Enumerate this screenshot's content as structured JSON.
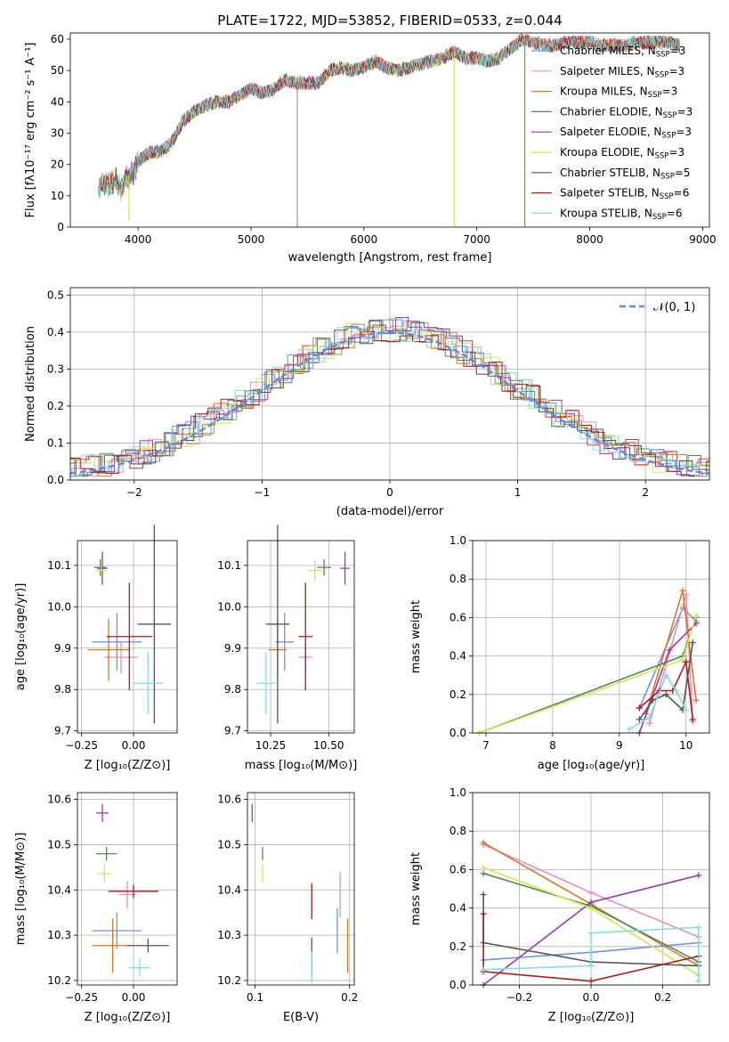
{
  "figure": {
    "title": "PLATE=1722, MJD=53852, FIBERID=0533, z=0.044"
  },
  "models": [
    {
      "label": "Chabrier MILES, N$_{SSP}$=3",
      "label_text": "Chabrier MILES, N",
      "nssp": "=3",
      "color": "#6f95e2"
    },
    {
      "label": "Salpeter MILES, N$_{SSP}$=3",
      "label_text": "Salpeter MILES, N",
      "nssp": "=3",
      "color": "#e98cbf"
    },
    {
      "label": "Kroupa MILES, N$_{SSP}$=3",
      "label_text": "Kroupa MILES, N",
      "nssp": "=3",
      "color": "#d9761f"
    },
    {
      "label": "Chabrier ELODIE, N$_{SSP}$=3",
      "label_text": "Chabrier ELODIE, N",
      "nssp": "=3",
      "color": "#4e8a5e"
    },
    {
      "label": "Salpeter ELODIE, N$_{SSP}$=3",
      "label_text": "Salpeter ELODIE, N",
      "nssp": "=3",
      "color": "#9a36b8"
    },
    {
      "label": "Kroupa ELODIE, N$_{SSP}$=3",
      "label_text": "Kroupa ELODIE, N",
      "nssp": "=3",
      "color": "#cfe84c"
    },
    {
      "label": "Chabrier STELIB, N$_{SSP}$=5",
      "label_text": "Chabrier STELIB, N",
      "nssp": "=5",
      "color": "#555555"
    },
    {
      "label": "Salpeter STELIB, N$_{SSP}$=6",
      "label_text": "Salpeter STELIB, N",
      "nssp": "=6",
      "color": "#b01a1a"
    },
    {
      "label": "Kroupa STELIB, N$_{SSP}$=6",
      "label_text": "Kroupa STELIB, N",
      "nssp": "=6",
      "color": "#82dde0"
    }
  ],
  "chart_data": [
    {
      "id": "spectrum",
      "type": "line",
      "xlabel": "wavelength [Angstrom, rest frame]",
      "ylabel": "Flux [fλ10⁻¹⁷ erg cm⁻² s⁻¹ A⁻¹]",
      "xlim": [
        3400,
        9060
      ],
      "ylim": [
        0,
        62
      ],
      "xticks": [
        4000,
        5000,
        6000,
        7000,
        8000,
        9000
      ],
      "yticks": [
        0,
        10,
        20,
        30,
        40,
        50,
        60
      ],
      "spectrum_anchor_points": {
        "wavelength": [
          3650,
          3700,
          3750,
          3800,
          3850,
          3900,
          3950,
          4000,
          4100,
          4200,
          4300,
          4400,
          4500,
          4600,
          4700,
          4800,
          4900,
          5000,
          5100,
          5200,
          5300,
          5400,
          5500,
          5600,
          5700,
          5800,
          5900,
          6000,
          6100,
          6200,
          6300,
          6400,
          6500,
          6600,
          6700,
          6800,
          6900,
          7000,
          7100,
          7200,
          7300,
          7400,
          7500,
          7600,
          7700,
          7800,
          7900,
          8000,
          8100,
          8200,
          8300,
          8400,
          8500,
          8600,
          8700,
          8800
        ],
        "flux": [
          12,
          14,
          13,
          16,
          12,
          16,
          17,
          21,
          24,
          24,
          27,
          34,
          37,
          39,
          40,
          40,
          42,
          44,
          43,
          44,
          47,
          46,
          46,
          46,
          50,
          51,
          50,
          51,
          53,
          51,
          50,
          51,
          52,
          53,
          54,
          56,
          54,
          54,
          53,
          54,
          57,
          60,
          59,
          58,
          58,
          59,
          59,
          59,
          58,
          58,
          58,
          59,
          59,
          59,
          59,
          58
        ]
      },
      "sharp_dips": [
        {
          "wavelength": 3920,
          "flux": 2
        },
        {
          "wavelength": 5410,
          "flux": 0
        },
        {
          "wavelength": 6800,
          "flux": 0
        },
        {
          "wavelength": 7425,
          "flux": 0
        }
      ],
      "legend": "top-right"
    },
    {
      "id": "residuals",
      "type": "line",
      "xlabel": "(data-model)/error",
      "ylabel": "Normed distribution",
      "xlim": [
        -2.5,
        2.5
      ],
      "ylim": [
        0,
        0.52
      ],
      "xticks": [
        -2,
        -1,
        0,
        1,
        2
      ],
      "yticks": [
        0.0,
        0.1,
        0.2,
        0.3,
        0.4,
        0.5
      ],
      "grid": true,
      "histogram_bin_width": 0.1,
      "reference_curve": {
        "name": "𝒩(0, 1)",
        "mean": 0,
        "sigma": 1,
        "style": "dashed",
        "color": "#5b8ee6"
      },
      "legend": "top-right"
    },
    {
      "id": "z-age",
      "type": "scatter",
      "xlabel": "Z [log₁₀(Z/Z⊙)]",
      "ylabel": "age  [log₁₀(age/yr)]",
      "xlim": [
        -0.27,
        0.21
      ],
      "ylim": [
        9.695,
        10.16
      ],
      "xticks": [
        -0.25,
        0.0
      ],
      "xticklabels": [
        "−0.25",
        "0.00"
      ],
      "yticks": [
        9.7,
        9.8,
        9.9,
        10.0,
        10.1
      ],
      "grid": true,
      "points": [
        {
          "x": -0.08,
          "y": 9.915,
          "xerr": 0.12,
          "yerr": 0.07
        },
        {
          "x": -0.06,
          "y": 9.878,
          "xerr": 0.08,
          "yerr": 0.04
        },
        {
          "x": -0.12,
          "y": 9.896,
          "xerr": 0.1,
          "yerr": 0.075
        },
        {
          "x": -0.16,
          "y": 10.095,
          "xerr": 0.03,
          "yerr": 0.02
        },
        {
          "x": -0.15,
          "y": 10.093,
          "xerr": 0.025,
          "yerr": 0.04
        },
        {
          "x": -0.155,
          "y": 10.088,
          "xerr": 0.025,
          "yerr": 0.025
        },
        {
          "x": 0.1,
          "y": 9.958,
          "xerr": 0.08,
          "yerr": 0.24
        },
        {
          "x": -0.02,
          "y": 9.928,
          "xerr": 0.11,
          "yerr": 0.13
        },
        {
          "x": 0.07,
          "y": 9.815,
          "xerr": 0.07,
          "yerr": 0.075
        }
      ]
    },
    {
      "id": "mass-age",
      "type": "scatter",
      "xlabel": "mass [log₁₀(M/M⊙)]",
      "ylabel": "",
      "xlim": [
        10.15,
        10.61
      ],
      "ylim": [
        9.695,
        10.16
      ],
      "xticks": [
        10.25,
        10.5
      ],
      "xticklabels": [
        "10.25",
        "10.50"
      ],
      "yticks": [
        9.7,
        9.8,
        9.9,
        10.0,
        10.1
      ],
      "grid": true,
      "points": [
        {
          "x": 10.31,
          "y": 9.915,
          "xerr": 0.04,
          "yerr": 0.07
        },
        {
          "x": 10.4,
          "y": 9.878,
          "xerr": 0.03,
          "yerr": 0.04
        },
        {
          "x": 10.28,
          "y": 9.896,
          "xerr": 0.04,
          "yerr": 0.075
        },
        {
          "x": 10.48,
          "y": 10.095,
          "xerr": 0.03,
          "yerr": 0.02
        },
        {
          "x": 10.57,
          "y": 10.093,
          "xerr": 0.02,
          "yerr": 0.04
        },
        {
          "x": 10.44,
          "y": 10.088,
          "xerr": 0.03,
          "yerr": 0.025
        },
        {
          "x": 10.28,
          "y": 9.958,
          "xerr": 0.05,
          "yerr": 0.24
        },
        {
          "x": 10.4,
          "y": 9.928,
          "xerr": 0.03,
          "yerr": 0.13
        },
        {
          "x": 10.23,
          "y": 9.815,
          "xerr": 0.04,
          "yerr": 0.075
        }
      ]
    },
    {
      "id": "age-weight",
      "type": "line",
      "xlabel": "age  [log₁₀(age/yr)]",
      "ylabel": "mass weight",
      "xlim": [
        6.8,
        10.35
      ],
      "ylim": [
        0,
        1.0
      ],
      "xticks": [
        7,
        8,
        9,
        10
      ],
      "yticks": [
        0.0,
        0.2,
        0.4,
        0.6,
        0.8,
        1.0
      ],
      "grid": true,
      "series": [
        {
          "x": [
            9.3,
            9.95,
            10.15
          ],
          "y": [
            0.13,
            0.65,
            0.58
          ]
        },
        {
          "x": [
            9.45,
            10.0,
            10.1
          ],
          "y": [
            0.05,
            0.72,
            0.06
          ]
        },
        {
          "x": [
            9.4,
            9.95,
            10.15
          ],
          "y": [
            0.1,
            0.74,
            0.17
          ]
        },
        {
          "x": [
            6.9,
            9.95,
            10.15
          ],
          "y": [
            0.0,
            0.4,
            0.6
          ]
        },
        {
          "x": [
            9.3,
            9.75,
            10.15
          ],
          "y": [
            0.0,
            0.43,
            0.57
          ]
        },
        {
          "x": [
            6.9,
            9.95,
            10.15
          ],
          "y": [
            0.0,
            0.38,
            0.61
          ]
        },
        {
          "x": [
            9.3,
            9.5,
            9.7,
            9.95,
            10.1
          ],
          "y": [
            0.07,
            0.17,
            0.2,
            0.12,
            0.47
          ]
        },
        {
          "x": [
            9.3,
            9.6,
            9.8,
            10.0,
            10.1
          ],
          "y": [
            0.13,
            0.22,
            0.22,
            0.37,
            0.07
          ]
        },
        {
          "x": [
            9.15,
            9.45,
            9.7,
            9.85,
            10.0
          ],
          "y": [
            0.02,
            0.08,
            0.3,
            0.22,
            0.12
          ]
        }
      ]
    },
    {
      "id": "z-mass",
      "type": "scatter",
      "xlabel": "Z [log₁₀(Z/Z⊙)]",
      "ylabel": "mass [log₁₀(M/M⊙)]",
      "xlim": [
        -0.27,
        0.21
      ],
      "ylim": [
        10.19,
        10.615
      ],
      "xticks": [
        -0.25,
        0.0
      ],
      "xticklabels": [
        "−0.25",
        "0.00"
      ],
      "yticks": [
        10.2,
        10.3,
        10.4,
        10.5,
        10.6
      ],
      "grid": true,
      "points": [
        {
          "x": -0.08,
          "y": 10.31,
          "xerr": 0.12,
          "yerr": 0.04
        },
        {
          "x": -0.03,
          "y": 10.39,
          "xerr": 0.04,
          "yerr": 0.03
        },
        {
          "x": -0.1,
          "y": 10.277,
          "xerr": 0.1,
          "yerr": 0.06
        },
        {
          "x": -0.13,
          "y": 10.48,
          "xerr": 0.05,
          "yerr": 0.015
        },
        {
          "x": -0.15,
          "y": 10.57,
          "xerr": 0.03,
          "yerr": 0.02
        },
        {
          "x": -0.14,
          "y": 10.436,
          "xerr": 0.03,
          "yerr": 0.02
        },
        {
          "x": 0.07,
          "y": 10.277,
          "xerr": 0.1,
          "yerr": 0.015
        },
        {
          "x": 0.0,
          "y": 10.397,
          "xerr": 0.12,
          "yerr": 0.015
        },
        {
          "x": 0.03,
          "y": 10.228,
          "xerr": 0.05,
          "yerr": 0.02
        }
      ]
    },
    {
      "id": "ebv-mass",
      "type": "scatter",
      "xlabel": "E(B-V)",
      "ylabel": "",
      "xlim": [
        0.092,
        0.205
      ],
      "ylim": [
        10.19,
        10.615
      ],
      "xticks": [
        0.1,
        0.2
      ],
      "xticklabels": [
        "0.1",
        "0.2"
      ],
      "yticks": [
        10.2,
        10.3,
        10.4,
        10.5,
        10.6
      ],
      "grid": true,
      "points": [
        {
          "x": 0.187,
          "y": 10.31,
          "xerr": 0.0,
          "yerr": 0.05
        },
        {
          "x": 0.19,
          "y": 10.39,
          "xerr": 0.0,
          "yerr": 0.05
        },
        {
          "x": 0.198,
          "y": 10.277,
          "xerr": 0.0,
          "yerr": 0.06
        },
        {
          "x": 0.108,
          "y": 10.48,
          "xerr": 0.0,
          "yerr": 0.015
        },
        {
          "x": 0.097,
          "y": 10.57,
          "xerr": 0.0,
          "yerr": 0.02
        },
        {
          "x": 0.108,
          "y": 10.436,
          "xerr": 0.0,
          "yerr": 0.02
        },
        {
          "x": 0.16,
          "y": 10.255,
          "xerr": 0.0,
          "yerr": 0.04
        },
        {
          "x": 0.16,
          "y": 10.375,
          "xerr": 0.0,
          "yerr": 0.04
        },
        {
          "x": 0.16,
          "y": 10.23,
          "xerr": 0.0,
          "yerr": 0.035
        }
      ]
    },
    {
      "id": "z-weight",
      "type": "line",
      "xlabel": "Z [log₁₀(Z/Z⊙)]",
      "ylabel": "mass weight",
      "xlim": [
        -0.33,
        0.33
      ],
      "ylim": [
        0,
        1.0
      ],
      "xticks": [
        -0.2,
        0.0,
        0.2
      ],
      "xticklabels": [
        "−0.2",
        "0.0",
        "0.2"
      ],
      "yticks": [
        0.0,
        0.2,
        0.4,
        0.6,
        0.8,
        1.0
      ],
      "grid": true,
      "series": [
        {
          "x": [
            -0.3,
            0.0,
            0.3
          ],
          "y": [
            0.13,
            0.17,
            0.22
          ]
        },
        {
          "x": [
            -0.3,
            0.0,
            0.3
          ],
          "y": [
            0.73,
            0.48,
            0.25
          ]
        },
        {
          "x": [
            -0.3,
            0.0,
            0.3
          ],
          "y": [
            0.74,
            0.42,
            0.1
          ]
        },
        {
          "x": [
            -0.3,
            0.0,
            0.3
          ],
          "y": [
            0.58,
            0.41,
            0.12
          ]
        },
        {
          "x": [
            -0.3,
            0.0,
            0.3
          ],
          "y": [
            0.0,
            0.43,
            0.57
          ]
        },
        {
          "x": [
            -0.3,
            0.0,
            0.3
          ],
          "y": [
            0.61,
            0.4,
            0.05
          ]
        },
        {
          "x": [
            -0.3,
            -0.3,
            0.0,
            0.3
          ],
          "y": [
            0.47,
            0.22,
            0.12,
            0.1
          ]
        },
        {
          "x": [
            -0.3,
            -0.3,
            0.0,
            0.3
          ],
          "y": [
            0.37,
            0.07,
            0.02,
            0.15
          ]
        },
        {
          "x": [
            -0.3,
            0.0,
            0.0,
            0.3,
            0.3
          ],
          "y": [
            0.08,
            0.1,
            0.27,
            0.3,
            0.02
          ]
        }
      ]
    }
  ]
}
